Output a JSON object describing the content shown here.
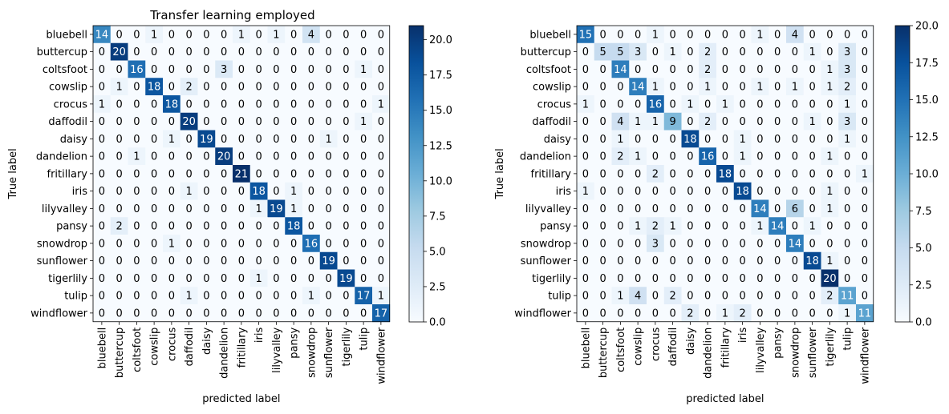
{
  "chart_data": [
    {
      "type": "heatmap",
      "title": "Transfer learning employed",
      "xlabel": "predicted label",
      "ylabel": "True label",
      "labels": [
        "bluebell",
        "buttercup",
        "coltsfoot",
        "cowslip",
        "crocus",
        "daffodil",
        "daisy",
        "dandelion",
        "fritillary",
        "iris",
        "lilyvalley",
        "pansy",
        "snowdrop",
        "sunflower",
        "tigerlily",
        "tulip",
        "windflower"
      ],
      "matrix": [
        [
          14,
          0,
          0,
          1,
          0,
          0,
          0,
          0,
          1,
          0,
          1,
          0,
          4,
          0,
          0,
          0,
          0
        ],
        [
          0,
          20,
          0,
          0,
          0,
          0,
          0,
          0,
          0,
          0,
          0,
          0,
          0,
          0,
          0,
          0,
          0
        ],
        [
          0,
          0,
          16,
          0,
          0,
          0,
          0,
          3,
          0,
          0,
          0,
          0,
          0,
          0,
          0,
          1,
          0
        ],
        [
          0,
          1,
          0,
          18,
          0,
          2,
          0,
          0,
          0,
          0,
          0,
          0,
          0,
          0,
          0,
          0,
          0
        ],
        [
          1,
          0,
          0,
          0,
          18,
          0,
          0,
          0,
          0,
          0,
          0,
          0,
          0,
          0,
          0,
          0,
          1
        ],
        [
          0,
          0,
          0,
          0,
          0,
          20,
          0,
          0,
          0,
          0,
          0,
          0,
          0,
          0,
          0,
          1,
          0
        ],
        [
          0,
          0,
          0,
          0,
          1,
          0,
          19,
          0,
          0,
          0,
          0,
          0,
          0,
          1,
          0,
          0,
          0
        ],
        [
          0,
          0,
          1,
          0,
          0,
          0,
          0,
          20,
          0,
          0,
          0,
          0,
          0,
          0,
          0,
          0,
          0
        ],
        [
          0,
          0,
          0,
          0,
          0,
          0,
          0,
          0,
          21,
          0,
          0,
          0,
          0,
          0,
          0,
          0,
          0
        ],
        [
          0,
          0,
          0,
          0,
          0,
          1,
          0,
          0,
          0,
          18,
          0,
          1,
          0,
          0,
          0,
          0,
          0
        ],
        [
          0,
          0,
          0,
          0,
          0,
          0,
          0,
          0,
          0,
          1,
          19,
          1,
          0,
          0,
          0,
          0,
          0
        ],
        [
          0,
          2,
          0,
          0,
          0,
          0,
          0,
          0,
          0,
          0,
          0,
          18,
          0,
          0,
          0,
          0,
          0
        ],
        [
          0,
          0,
          0,
          0,
          1,
          0,
          0,
          0,
          0,
          0,
          0,
          0,
          16,
          0,
          0,
          0,
          0
        ],
        [
          0,
          0,
          0,
          0,
          0,
          0,
          0,
          0,
          0,
          0,
          0,
          0,
          0,
          19,
          0,
          0,
          0
        ],
        [
          0,
          0,
          0,
          0,
          0,
          0,
          0,
          0,
          0,
          1,
          0,
          0,
          0,
          0,
          19,
          0,
          0
        ],
        [
          0,
          0,
          0,
          0,
          0,
          1,
          0,
          0,
          0,
          0,
          0,
          0,
          1,
          0,
          0,
          17,
          1
        ],
        [
          0,
          0,
          0,
          0,
          0,
          0,
          0,
          0,
          0,
          0,
          0,
          0,
          0,
          0,
          0,
          0,
          17
        ]
      ],
      "colorbar": {
        "vmin": 0,
        "vmax": 21,
        "ticks": [
          0,
          2.5,
          5,
          7.5,
          10,
          12.5,
          15,
          17.5,
          20
        ],
        "tick_labels": [
          "0.0",
          "2.5",
          "5.0",
          "7.5",
          "10.0",
          "12.5",
          "15.0",
          "17.5",
          "20.0"
        ]
      },
      "colormap": "Blues"
    },
    {
      "type": "heatmap",
      "title": "",
      "xlabel": "predicted label",
      "ylabel": "True label",
      "labels": [
        "bluebell",
        "buttercup",
        "coltsfoot",
        "cowslip",
        "crocus",
        "daffodil",
        "daisy",
        "dandelion",
        "fritillary",
        "iris",
        "lilyvalley",
        "pansy",
        "snowdrop",
        "sunflower",
        "tigerlily",
        "tulip",
        "windflower"
      ],
      "matrix": [
        [
          15,
          0,
          0,
          0,
          1,
          0,
          0,
          0,
          0,
          0,
          1,
          0,
          4,
          0,
          0,
          0,
          0
        ],
        [
          0,
          5,
          5,
          3,
          0,
          1,
          0,
          2,
          0,
          0,
          0,
          0,
          0,
          1,
          0,
          3,
          0
        ],
        [
          0,
          0,
          14,
          0,
          0,
          0,
          0,
          2,
          0,
          0,
          0,
          0,
          0,
          0,
          1,
          3,
          0
        ],
        [
          0,
          0,
          0,
          14,
          1,
          0,
          0,
          1,
          0,
          0,
          1,
          0,
          1,
          0,
          1,
          2,
          0
        ],
        [
          1,
          0,
          0,
          0,
          16,
          0,
          1,
          0,
          1,
          0,
          0,
          0,
          0,
          0,
          0,
          1,
          0
        ],
        [
          0,
          0,
          4,
          1,
          1,
          9,
          0,
          2,
          0,
          0,
          0,
          0,
          0,
          1,
          0,
          3,
          0
        ],
        [
          0,
          0,
          1,
          0,
          0,
          0,
          18,
          0,
          0,
          1,
          0,
          0,
          0,
          0,
          0,
          1,
          0
        ],
        [
          0,
          0,
          2,
          1,
          0,
          0,
          0,
          16,
          0,
          1,
          0,
          0,
          0,
          0,
          1,
          0,
          0
        ],
        [
          0,
          0,
          0,
          0,
          2,
          0,
          0,
          0,
          18,
          0,
          0,
          0,
          0,
          0,
          0,
          0,
          1
        ],
        [
          1,
          0,
          0,
          0,
          0,
          0,
          0,
          0,
          0,
          18,
          0,
          0,
          0,
          0,
          1,
          0,
          0
        ],
        [
          0,
          0,
          0,
          0,
          0,
          0,
          0,
          0,
          0,
          0,
          14,
          0,
          6,
          0,
          1,
          0,
          0
        ],
        [
          0,
          0,
          0,
          1,
          2,
          1,
          0,
          0,
          0,
          0,
          1,
          14,
          0,
          1,
          0,
          0,
          0
        ],
        [
          0,
          0,
          0,
          0,
          3,
          0,
          0,
          0,
          0,
          0,
          0,
          0,
          14,
          0,
          0,
          0,
          0
        ],
        [
          0,
          0,
          0,
          0,
          0,
          0,
          0,
          0,
          0,
          0,
          0,
          0,
          0,
          18,
          1,
          0,
          0
        ],
        [
          0,
          0,
          0,
          0,
          0,
          0,
          0,
          0,
          0,
          0,
          0,
          0,
          0,
          0,
          20,
          0,
          0
        ],
        [
          0,
          0,
          1,
          4,
          0,
          2,
          0,
          0,
          0,
          0,
          0,
          0,
          0,
          0,
          2,
          11,
          0
        ],
        [
          0,
          0,
          0,
          0,
          0,
          0,
          2,
          0,
          1,
          2,
          0,
          0,
          0,
          0,
          0,
          1,
          11
        ]
      ],
      "colorbar": {
        "vmin": 0,
        "vmax": 20,
        "ticks": [
          0,
          2.5,
          5,
          7.5,
          10,
          12.5,
          15,
          17.5,
          20
        ],
        "tick_labels": [
          "0.0",
          "2.5",
          "5.0",
          "7.5",
          "10.0",
          "12.5",
          "15.0",
          "17.5",
          "20.0"
        ]
      },
      "colormap": "Blues"
    }
  ]
}
